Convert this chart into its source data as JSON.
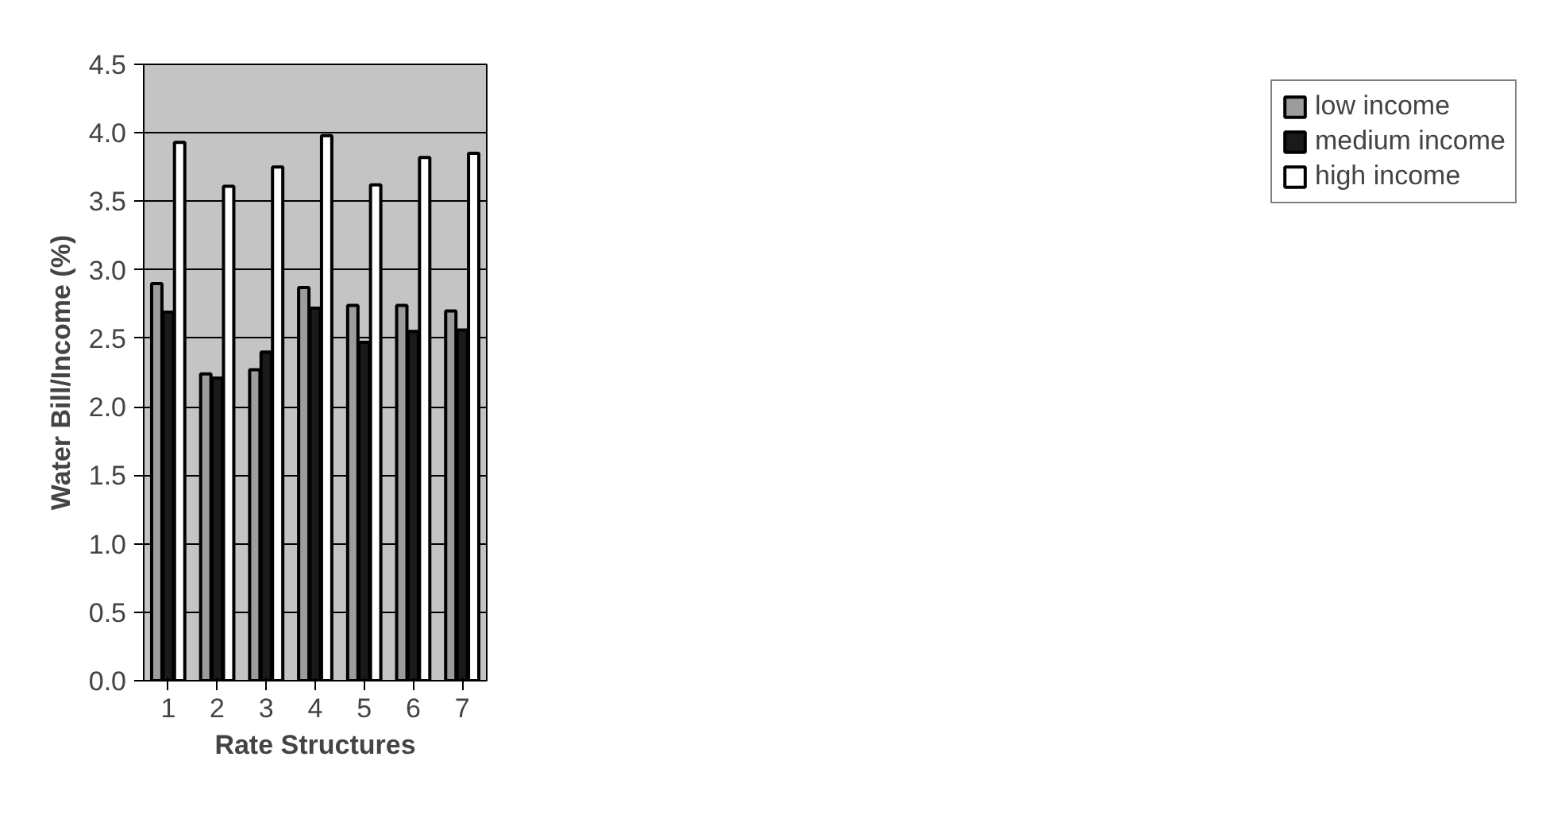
{
  "chart_data": {
    "type": "bar",
    "xlabel": "Rate Structures",
    "ylabel": "Water Bill/Income (%)",
    "categories": [
      "1",
      "2",
      "3",
      "4",
      "5",
      "6",
      "7"
    ],
    "series": [
      {
        "name": "low income",
        "color": "#9c9c9c",
        "values": [
          2.9,
          2.24,
          2.27,
          2.87,
          2.74,
          2.74,
          2.7
        ]
      },
      {
        "name": "medium income",
        "color": "#1a1a1a",
        "values": [
          2.69,
          2.21,
          2.4,
          2.72,
          2.47,
          2.55,
          2.56
        ]
      },
      {
        "name": "high income",
        "color": "#ffffff",
        "values": [
          3.93,
          3.61,
          3.75,
          3.98,
          3.62,
          3.82,
          3.85
        ]
      }
    ],
    "ylim": [
      0,
      4.5
    ],
    "yticks": [
      {
        "value": 0,
        "label": "0.0"
      },
      {
        "value": 0.5,
        "label": "0.5"
      },
      {
        "value": 1,
        "label": "1.0"
      },
      {
        "value": 1.5,
        "label": "1.5"
      },
      {
        "value": 2,
        "label": "2.0"
      },
      {
        "value": 2.5,
        "label": "2.5"
      },
      {
        "value": 3,
        "label": "3.0"
      },
      {
        "value": 3.5,
        "label": "3.5"
      },
      {
        "value": 4,
        "label": "4.0"
      },
      {
        "value": 4.5,
        "label": "4.5"
      }
    ],
    "grid": "y",
    "legend": "right"
  }
}
